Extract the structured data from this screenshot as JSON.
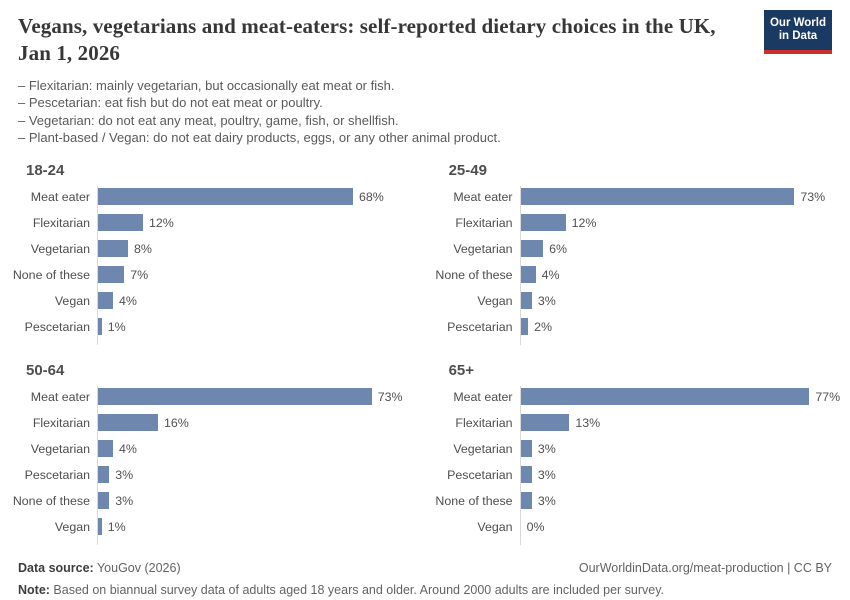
{
  "header": {
    "title": "Vegans, vegetarians and meat-eaters: self-reported dietary choices in the UK, Jan 1, 2026",
    "subtitle_lines": [
      "– Flexitarian: mainly vegetarian, but occasionally eat meat or fish.",
      "– Pescetarian: eat fish but do not eat meat or poultry.",
      "– Vegetarian: do not eat any meat, poultry, game, fish, or shellfish.",
      "– Plant-based / Vegan: do not eat dairy products, eggs, or any other animal product."
    ],
    "logo": {
      "line1": "Our World",
      "line2": "in Data"
    }
  },
  "chart_data": [
    {
      "type": "bar",
      "title": "18-24",
      "orientation": "horizontal",
      "unit": "%",
      "xlim": [
        0,
        80
      ],
      "categories": [
        "Meat eater",
        "Flexitarian",
        "Vegetarian",
        "None of these",
        "Vegan",
        "Pescetarian"
      ],
      "values": [
        68,
        12,
        8,
        7,
        4,
        1
      ]
    },
    {
      "type": "bar",
      "title": "25-49",
      "orientation": "horizontal",
      "unit": "%",
      "xlim": [
        0,
        80
      ],
      "categories": [
        "Meat eater",
        "Flexitarian",
        "Vegetarian",
        "None of these",
        "Vegan",
        "Pescetarian"
      ],
      "values": [
        73,
        12,
        6,
        4,
        3,
        2
      ]
    },
    {
      "type": "bar",
      "title": "50-64",
      "orientation": "horizontal",
      "unit": "%",
      "xlim": [
        0,
        80
      ],
      "categories": [
        "Meat eater",
        "Flexitarian",
        "Vegetarian",
        "Pescetarian",
        "None of these",
        "Vegan"
      ],
      "values": [
        73,
        16,
        4,
        3,
        3,
        1
      ]
    },
    {
      "type": "bar",
      "title": "65+",
      "orientation": "horizontal",
      "unit": "%",
      "xlim": [
        0,
        80
      ],
      "categories": [
        "Meat eater",
        "Flexitarian",
        "Vegetarian",
        "Pescetarian",
        "None of these",
        "Vegan"
      ],
      "values": [
        77,
        13,
        3,
        3,
        3,
        0
      ]
    }
  ],
  "footer": {
    "data_source_label": "Data source:",
    "data_source_value": " YouGov (2026)",
    "link": "OurWorldinData.org/meat-production | CC BY",
    "note_label": "Note:",
    "note_value": " Based on biannual survey data of adults aged 18 years and older. Around 2000 adults are included per survey."
  },
  "colors": {
    "bar": "#6e87ae",
    "axis": "#d9d9d9",
    "logo_bg": "#1b3a63",
    "logo_red": "#c7302b",
    "title_text": "#373737",
    "body_text": "#5a5a5a"
  }
}
